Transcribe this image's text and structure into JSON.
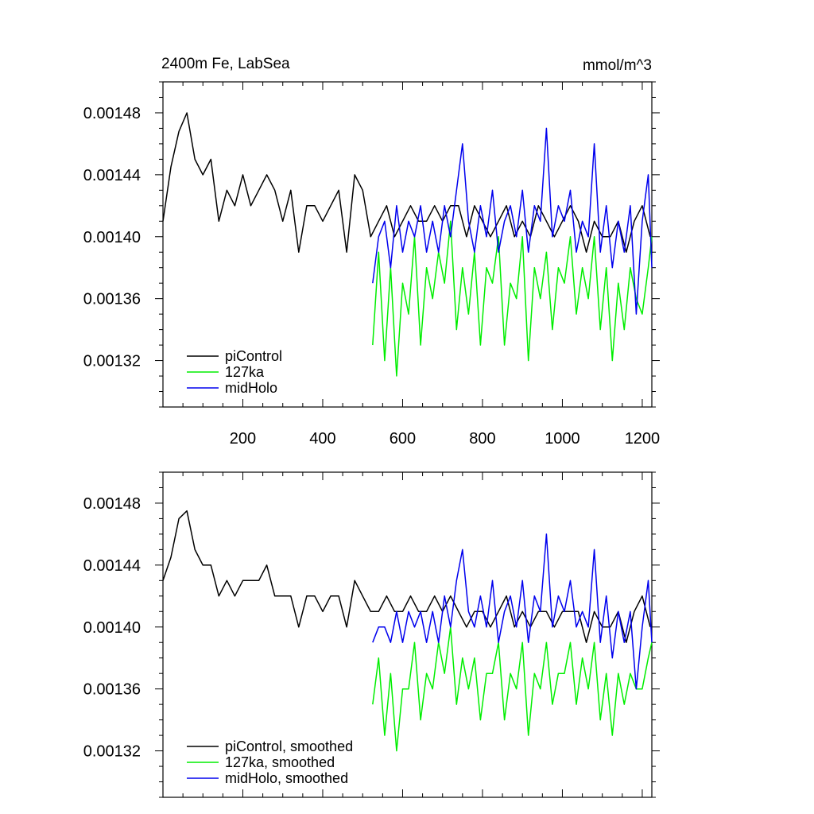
{
  "chart_data": [
    {
      "type": "line",
      "title": "2400m Fe, LabSea",
      "units": "mmol/m^3",
      "xlim": [
        0,
        1224
      ],
      "ylim": [
        0.00129,
        0.0015
      ],
      "x_ticks": [
        200,
        400,
        600,
        800,
        1000,
        1200
      ],
      "x_tick_labels": [
        "200",
        "400",
        "600",
        "800",
        "1000",
        "1200"
      ],
      "y_ticks": [
        0.00132,
        0.00136,
        0.0014,
        0.00144,
        0.00148
      ],
      "y_tick_labels": [
        "0.00132",
        "0.00136",
        "0.00140",
        "0.00144",
        "0.00148"
      ],
      "legend_position": "bottom-left",
      "series": [
        {
          "name": "piControl",
          "color": "#000000",
          "x": [
            0,
            20,
            40,
            60,
            80,
            100,
            120,
            140,
            160,
            180,
            200,
            220,
            240,
            260,
            280,
            300,
            320,
            340,
            360,
            380,
            400,
            420,
            440,
            460,
            480,
            500,
            520,
            540,
            560,
            580,
            600,
            620,
            640,
            660,
            680,
            700,
            720,
            740,
            760,
            780,
            800,
            820,
            840,
            860,
            880,
            900,
            920,
            940,
            960,
            980,
            1000,
            1020,
            1040,
            1060,
            1080,
            1100,
            1120,
            1140,
            1160,
            1180,
            1200,
            1220
          ],
          "values": [
            0.00141,
            0.001445,
            0.001468,
            0.00148,
            0.00145,
            0.00144,
            0.00145,
            0.00141,
            0.00143,
            0.00142,
            0.00144,
            0.00142,
            0.00143,
            0.00144,
            0.00143,
            0.00141,
            0.00143,
            0.00139,
            0.00142,
            0.00142,
            0.00141,
            0.00142,
            0.00143,
            0.00139,
            0.00144,
            0.00143,
            0.0014,
            0.00141,
            0.00142,
            0.0014,
            0.00141,
            0.00142,
            0.00141,
            0.00141,
            0.00142,
            0.00141,
            0.00142,
            0.00142,
            0.0014,
            0.00142,
            0.00141,
            0.0014,
            0.00141,
            0.00142,
            0.0014,
            0.00141,
            0.0014,
            0.00142,
            0.00141,
            0.0014,
            0.00141,
            0.00142,
            0.00141,
            0.00139,
            0.00141,
            0.0014,
            0.0014,
            0.00141,
            0.00139,
            0.00141,
            0.00142,
            0.0014
          ]
        },
        {
          "name": "127ka",
          "color": "#00ee00",
          "x": [
            525,
            540,
            555,
            570,
            585,
            600,
            615,
            630,
            645,
            660,
            675,
            690,
            705,
            720,
            735,
            750,
            765,
            780,
            795,
            810,
            825,
            840,
            855,
            870,
            885,
            900,
            915,
            930,
            945,
            960,
            975,
            990,
            1005,
            1020,
            1035,
            1050,
            1065,
            1080,
            1095,
            1110,
            1125,
            1140,
            1155,
            1170,
            1185,
            1200,
            1215,
            1224
          ],
          "values": [
            0.00133,
            0.00139,
            0.00132,
            0.00138,
            0.00131,
            0.00137,
            0.00135,
            0.0014,
            0.00133,
            0.00138,
            0.00136,
            0.00139,
            0.00137,
            0.00141,
            0.00134,
            0.00138,
            0.00135,
            0.00139,
            0.00133,
            0.00138,
            0.00137,
            0.0014,
            0.00133,
            0.00137,
            0.00136,
            0.0014,
            0.00132,
            0.00138,
            0.00136,
            0.00139,
            0.00134,
            0.00138,
            0.00137,
            0.0014,
            0.00135,
            0.00138,
            0.00136,
            0.0014,
            0.00134,
            0.00138,
            0.00132,
            0.00137,
            0.00134,
            0.00138,
            0.00136,
            0.00135,
            0.00138,
            0.0014
          ]
        },
        {
          "name": "midHolo",
          "color": "#0000ee",
          "x": [
            525,
            540,
            555,
            570,
            585,
            600,
            615,
            630,
            645,
            660,
            675,
            690,
            705,
            720,
            735,
            750,
            765,
            780,
            795,
            810,
            825,
            840,
            855,
            870,
            885,
            900,
            915,
            930,
            945,
            960,
            975,
            990,
            1005,
            1020,
            1035,
            1050,
            1065,
            1080,
            1095,
            1110,
            1125,
            1140,
            1155,
            1170,
            1185,
            1200,
            1215,
            1224
          ],
          "values": [
            0.00137,
            0.0014,
            0.00141,
            0.00138,
            0.00142,
            0.00139,
            0.00141,
            0.0014,
            0.00142,
            0.00139,
            0.00141,
            0.00139,
            0.00142,
            0.0014,
            0.00143,
            0.00146,
            0.00141,
            0.00139,
            0.00142,
            0.0014,
            0.00143,
            0.00139,
            0.00141,
            0.00142,
            0.0014,
            0.00143,
            0.00139,
            0.00142,
            0.00141,
            0.00147,
            0.0014,
            0.00142,
            0.00141,
            0.00143,
            0.00139,
            0.00141,
            0.0014,
            0.00146,
            0.00139,
            0.00142,
            0.00138,
            0.00141,
            0.00139,
            0.00142,
            0.00135,
            0.00141,
            0.00144,
            0.00138
          ]
        }
      ]
    },
    {
      "type": "line",
      "title": "",
      "xlim": [
        0,
        1224
      ],
      "ylim": [
        0.00129,
        0.0015
      ],
      "x_ticks": [
        200,
        400,
        600,
        800,
        1000,
        1200
      ],
      "x_tick_labels": [],
      "y_ticks": [
        0.00132,
        0.00136,
        0.0014,
        0.00144,
        0.00148
      ],
      "y_tick_labels": [
        "0.00132",
        "0.00136",
        "0.00140",
        "0.00144",
        "0.00148"
      ],
      "legend_position": "bottom-left",
      "series": [
        {
          "name": "piControl, smoothed",
          "color": "#000000",
          "x": [
            0,
            20,
            40,
            60,
            80,
            100,
            120,
            140,
            160,
            180,
            200,
            220,
            240,
            260,
            280,
            300,
            320,
            340,
            360,
            380,
            400,
            420,
            440,
            460,
            480,
            500,
            520,
            540,
            560,
            580,
            600,
            620,
            640,
            660,
            680,
            700,
            720,
            740,
            760,
            780,
            800,
            820,
            840,
            860,
            880,
            900,
            920,
            940,
            960,
            980,
            1000,
            1020,
            1040,
            1060,
            1080,
            1100,
            1120,
            1140,
            1160,
            1180,
            1200,
            1220
          ],
          "values": [
            0.00143,
            0.001445,
            0.00147,
            0.001475,
            0.00145,
            0.00144,
            0.00144,
            0.00142,
            0.00143,
            0.00142,
            0.00143,
            0.00143,
            0.00143,
            0.00144,
            0.00142,
            0.00142,
            0.00142,
            0.0014,
            0.00142,
            0.00142,
            0.00141,
            0.00142,
            0.00142,
            0.0014,
            0.00143,
            0.00142,
            0.00141,
            0.00141,
            0.00142,
            0.00141,
            0.00141,
            0.00142,
            0.00141,
            0.00141,
            0.00142,
            0.00141,
            0.00142,
            0.00141,
            0.0014,
            0.00141,
            0.00141,
            0.0014,
            0.00141,
            0.00142,
            0.0014,
            0.00141,
            0.0014,
            0.00141,
            0.00141,
            0.0014,
            0.00141,
            0.00141,
            0.00141,
            0.00139,
            0.00141,
            0.0014,
            0.0014,
            0.00141,
            0.00139,
            0.00141,
            0.00142,
            0.0014
          ]
        },
        {
          "name": "127ka, smoothed",
          "color": "#00ee00",
          "x": [
            525,
            540,
            555,
            570,
            585,
            600,
            615,
            630,
            645,
            660,
            675,
            690,
            705,
            720,
            735,
            750,
            765,
            780,
            795,
            810,
            825,
            840,
            855,
            870,
            885,
            900,
            915,
            930,
            945,
            960,
            975,
            990,
            1005,
            1020,
            1035,
            1050,
            1065,
            1080,
            1095,
            1110,
            1125,
            1140,
            1155,
            1170,
            1185,
            1200,
            1215,
            1224
          ],
          "values": [
            0.00135,
            0.00138,
            0.00133,
            0.00137,
            0.00132,
            0.00136,
            0.00136,
            0.00139,
            0.00134,
            0.00137,
            0.00136,
            0.00139,
            0.00137,
            0.0014,
            0.00135,
            0.00138,
            0.00136,
            0.00138,
            0.00134,
            0.00137,
            0.00137,
            0.00139,
            0.00134,
            0.00137,
            0.00136,
            0.00139,
            0.00133,
            0.00137,
            0.00136,
            0.00139,
            0.00135,
            0.00137,
            0.00137,
            0.00139,
            0.00135,
            0.00138,
            0.00136,
            0.00139,
            0.00134,
            0.00137,
            0.00133,
            0.00137,
            0.00135,
            0.00137,
            0.00136,
            0.00136,
            0.00138,
            0.00139
          ]
        },
        {
          "name": "midHolo, smoothed",
          "color": "#0000ee",
          "x": [
            525,
            540,
            555,
            570,
            585,
            600,
            615,
            630,
            645,
            660,
            675,
            690,
            705,
            720,
            735,
            750,
            765,
            780,
            795,
            810,
            825,
            840,
            855,
            870,
            885,
            900,
            915,
            930,
            945,
            960,
            975,
            990,
            1005,
            1020,
            1035,
            1050,
            1065,
            1080,
            1095,
            1110,
            1125,
            1140,
            1155,
            1170,
            1185,
            1200,
            1215,
            1224
          ],
          "values": [
            0.00139,
            0.0014,
            0.0014,
            0.00139,
            0.00141,
            0.00139,
            0.00141,
            0.0014,
            0.00141,
            0.00139,
            0.00141,
            0.00139,
            0.00142,
            0.0014,
            0.00143,
            0.00145,
            0.00141,
            0.0014,
            0.00142,
            0.0014,
            0.00143,
            0.00139,
            0.00141,
            0.00142,
            0.0014,
            0.00143,
            0.00139,
            0.00142,
            0.00141,
            0.00146,
            0.0014,
            0.00142,
            0.00141,
            0.00143,
            0.0014,
            0.00141,
            0.0014,
            0.00145,
            0.00139,
            0.00142,
            0.00138,
            0.00141,
            0.00139,
            0.00141,
            0.00136,
            0.0014,
            0.00143,
            0.00139
          ]
        }
      ]
    }
  ]
}
